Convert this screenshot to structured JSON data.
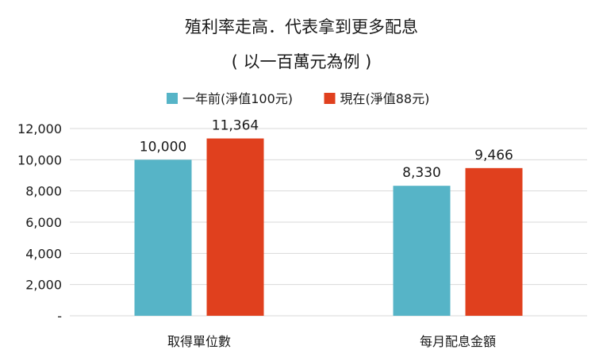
{
  "chart_data": {
    "type": "bar",
    "title": "殖利率走高．代表拿到更多配息",
    "subtitle": "( 以一百萬元為例 )",
    "categories": [
      "取得單位數",
      "每月配息金額"
    ],
    "series": [
      {
        "name": "一年前(淨值100元)",
        "color": "#56B4C7",
        "values": [
          10000,
          8330
        ],
        "labels": [
          "10,000",
          "8,330"
        ]
      },
      {
        "name": "現在(淨值88元)",
        "color": "#E0401E",
        "values": [
          11364,
          9466
        ],
        "labels": [
          "11,364",
          "9,466"
        ]
      }
    ],
    "ylim": [
      0,
      12000
    ],
    "yticks": [
      0,
      2000,
      4000,
      6000,
      8000,
      10000,
      12000
    ],
    "ytick_labels": [
      "-",
      "2,000",
      "4,000",
      "6,000",
      "8,000",
      "10,000",
      "12,000"
    ],
    "grid": true,
    "legend_position": "top-center",
    "xlabel": "",
    "ylabel": ""
  }
}
